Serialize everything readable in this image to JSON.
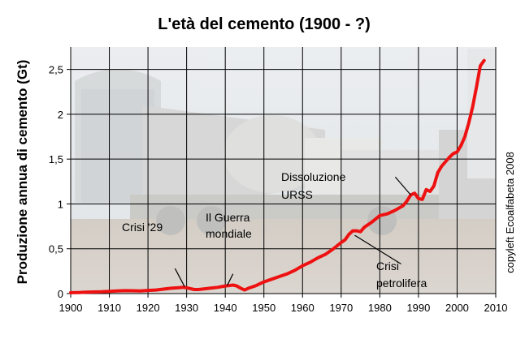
{
  "chart_data": {
    "type": "line",
    "title": "L'età del cemento (1900 - ?)",
    "ylabel": "Produzione annua di cemento (Gt)",
    "xlabel": "",
    "xlim": [
      1900,
      2010
    ],
    "ylim": [
      0,
      2.75
    ],
    "x_ticks": [
      "1900",
      "1910",
      "1920",
      "1930",
      "1940",
      "1950",
      "1960",
      "1970",
      "1980",
      "1990",
      "2000",
      "2010"
    ],
    "y_ticks": [
      "0",
      "0,5",
      "1",
      "1,5",
      "2",
      "2,5"
    ],
    "grid": true,
    "line_color": "#ee1111",
    "series": [
      {
        "x": [
          1900,
          1902,
          1904,
          1906,
          1908,
          1910,
          1912,
          1914,
          1916,
          1918,
          1920,
          1922,
          1924,
          1926,
          1928,
          1929,
          1930,
          1931,
          1932,
          1933,
          1934,
          1936,
          1938,
          1940,
          1941,
          1942,
          1943,
          1944,
          1945,
          1946,
          1948,
          1950,
          1952,
          1954,
          1956,
          1958,
          1960,
          1962,
          1964,
          1966,
          1968,
          1970,
          1971,
          1972,
          1973,
          1974,
          1975,
          1976,
          1978,
          1980,
          1982,
          1984,
          1986,
          1987,
          1988,
          1989,
          1990,
          1991,
          1992,
          1993,
          1994,
          1995,
          1996,
          1998,
          1999,
          2000,
          2001,
          2002,
          2003,
          2004,
          2005,
          2006,
          2007
        ],
        "y": [
          0.01,
          0.012,
          0.015,
          0.018,
          0.02,
          0.025,
          0.03,
          0.033,
          0.032,
          0.03,
          0.035,
          0.04,
          0.05,
          0.06,
          0.065,
          0.07,
          0.065,
          0.055,
          0.045,
          0.045,
          0.05,
          0.06,
          0.07,
          0.085,
          0.09,
          0.095,
          0.085,
          0.06,
          0.04,
          0.06,
          0.09,
          0.13,
          0.16,
          0.19,
          0.22,
          0.26,
          0.31,
          0.35,
          0.4,
          0.44,
          0.5,
          0.57,
          0.6,
          0.66,
          0.7,
          0.7,
          0.69,
          0.74,
          0.8,
          0.87,
          0.89,
          0.93,
          0.98,
          1.03,
          1.1,
          1.12,
          1.06,
          1.05,
          1.16,
          1.14,
          1.2,
          1.35,
          1.42,
          1.52,
          1.56,
          1.58,
          1.65,
          1.75,
          1.9,
          2.08,
          2.3,
          2.54,
          2.6
        ]
      }
    ],
    "annotations": [
      {
        "text": "Crisi '29"
      },
      {
        "text": "Il Guerra"
      },
      {
        "text": "mondiale"
      },
      {
        "text": "Dissoluzione"
      },
      {
        "text": "URSS"
      },
      {
        "text": "Crisi"
      },
      {
        "text": "petrolifera"
      }
    ]
  },
  "copyright": "copyleft Ecoalfabeta 2008"
}
